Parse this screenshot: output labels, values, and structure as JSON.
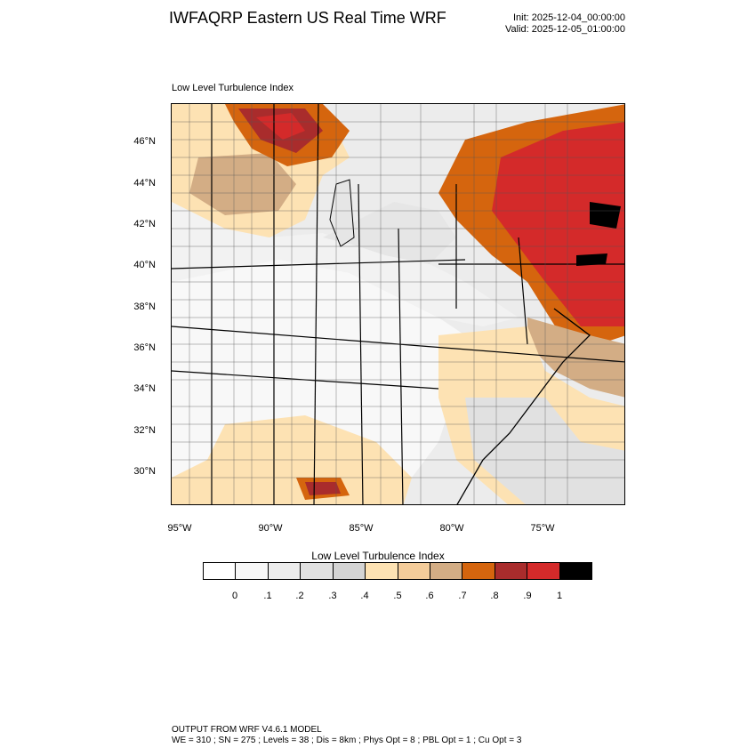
{
  "header": {
    "title": "IWFAQRP Eastern US Real Time WRF",
    "init": "Init: 2025-12-04_00:00:00",
    "valid": "Valid: 2025-12-05_01:00:00"
  },
  "plot": {
    "field_label": "Low Level Turbulence Index"
  },
  "axes": {
    "lat_labels": [
      "46°N",
      "44°N",
      "42°N",
      "40°N",
      "38°N",
      "36°N",
      "34°N",
      "32°N",
      "30°N"
    ],
    "lon_labels": [
      "95°W",
      "90°W",
      "85°W",
      "80°W",
      "75°W"
    ]
  },
  "colorbar": {
    "title": "Low Level Turbulence Index",
    "colors": [
      "#ffffff",
      "#f7f7f7",
      "#ececec",
      "#e1e1e1",
      "#d4d4d4",
      "#fde2b3",
      "#f4cc9a",
      "#d3ad85",
      "#d5650e",
      "#a92c2c",
      "#d42a2a",
      "#000000"
    ],
    "labels": [
      "0",
      ".1",
      ".2",
      ".3",
      ".4",
      ".5",
      ".6",
      ".7",
      ".8",
      ".9",
      "1"
    ]
  },
  "footer": {
    "line1": "OUTPUT FROM WRF V4.6.1 MODEL",
    "line2": "WE = 310 ; SN = 275 ; Levels = 38 ; Dis = 8km ; Phys Opt = 8 ; PBL Opt = 1 ; Cu Opt = 3"
  }
}
